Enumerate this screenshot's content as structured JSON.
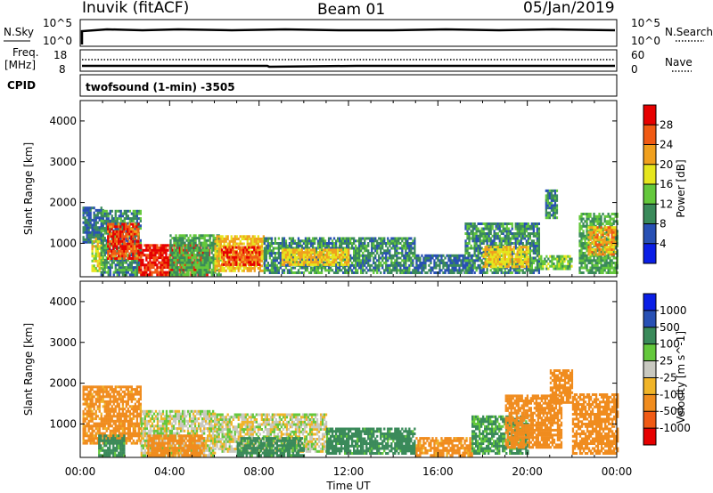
{
  "header": {
    "station": "Inuvik (fitACF)",
    "beam": "Beam 01",
    "date": "05/Jan/2019"
  },
  "top_panels": {
    "nsky_label": "N.Sky",
    "nsearch_label": "N.Search",
    "noise_ticks": [
      "10^5",
      "10^0"
    ],
    "freq_label_line1": "Freq.",
    "freq_label_line2": "[MHz]",
    "freq_ticks": [
      "18",
      "8"
    ],
    "nave_label": "Nave",
    "nave_ticks": [
      "60",
      "0"
    ],
    "cpid_label": "CPID",
    "cpid_text": "twofsound (1-min) -3505"
  },
  "colors": {
    "power": [
      "#0a1ee6",
      "#2850b4",
      "#3a8a5a",
      "#64c83c",
      "#e6e61e",
      "#f0a01e",
      "#f05a14",
      "#e60000"
    ],
    "velocity": [
      "#e60000",
      "#f05a14",
      "#f08c1e",
      "#f0b428",
      "#c8c8c0",
      "#64c83c",
      "#3a8a5a",
      "#2850b4",
      "#0a1ee6"
    ]
  },
  "chart_data": [
    {
      "type": "heatmap",
      "title": "Power",
      "ylabel": "Slant Range [km]",
      "xlabel": "Time UT",
      "xticks": [
        "00:00",
        "04:00",
        "08:00",
        "12:00",
        "16:00",
        "20:00",
        "00:00"
      ],
      "yticks": [
        "1000",
        "2000",
        "3000",
        "4000"
      ],
      "ylim": [
        180,
        4500
      ],
      "xlim": [
        0,
        24
      ],
      "colorbar_label": "Power [dB]",
      "colorbar_ticks": [
        "4",
        "8",
        "12",
        "16",
        "20",
        "24",
        "28"
      ],
      "regions": [
        {
          "t0": 0.1,
          "t1": 1.0,
          "r0": 1000,
          "r1": 1900,
          "v": 8
        },
        {
          "t0": 0.5,
          "t1": 1.0,
          "r0": 300,
          "r1": 1100,
          "v": 18
        },
        {
          "t0": 0.9,
          "t1": 2.7,
          "r0": 200,
          "r1": 1800,
          "v": 10
        },
        {
          "t0": 1.2,
          "t1": 2.6,
          "r0": 600,
          "r1": 1500,
          "v": 27
        },
        {
          "t0": 2.6,
          "t1": 5.8,
          "r0": 200,
          "r1": 950,
          "v": 29
        },
        {
          "t0": 4.0,
          "t1": 6.3,
          "r0": 200,
          "r1": 1200,
          "v": 12
        },
        {
          "t0": 6.0,
          "t1": 8.2,
          "r0": 300,
          "r1": 1200,
          "v": 20
        },
        {
          "t0": 6.3,
          "t1": 8.0,
          "r0": 450,
          "r1": 900,
          "v": 27
        },
        {
          "t0": 8.2,
          "t1": 15.0,
          "r0": 250,
          "r1": 1100,
          "v": 10
        },
        {
          "t0": 9.0,
          "t1": 12.0,
          "r0": 450,
          "r1": 850,
          "v": 20
        },
        {
          "t0": 15.0,
          "t1": 17.5,
          "r0": 250,
          "r1": 700,
          "v": 8
        },
        {
          "t0": 17.2,
          "t1": 20.5,
          "r0": 250,
          "r1": 1500,
          "v": 10
        },
        {
          "t0": 18.0,
          "t1": 20.0,
          "r0": 400,
          "r1": 900,
          "v": 20
        },
        {
          "t0": 20.5,
          "t1": 22.0,
          "r0": 350,
          "r1": 700,
          "v": 14
        },
        {
          "t0": 20.8,
          "t1": 21.3,
          "r0": 1600,
          "r1": 2300,
          "v": 10
        },
        {
          "t0": 22.3,
          "t1": 24.0,
          "r0": 250,
          "r1": 1750,
          "v": 12
        },
        {
          "t0": 22.7,
          "t1": 23.9,
          "r0": 700,
          "r1": 1400,
          "v": 22
        }
      ]
    },
    {
      "type": "heatmap",
      "title": "Velocity",
      "ylabel": "Slant Range [km]",
      "xlabel": "Time UT",
      "xticks": [
        "00:00",
        "04:00",
        "08:00",
        "12:00",
        "16:00",
        "20:00",
        "00:00"
      ],
      "yticks": [
        "1000",
        "2000",
        "3000",
        "4000"
      ],
      "ylim": [
        180,
        4500
      ],
      "xlim": [
        0,
        24
      ],
      "colorbar_label": "Velocity [m s^-1]",
      "colorbar_ticks": [
        "1000",
        "500",
        "100",
        "25",
        "-25",
        "-100",
        "-500",
        "-1000"
      ],
      "regions": [
        {
          "t0": 0.1,
          "t1": 2.7,
          "r0": 500,
          "r1": 1900,
          "v": -150
        },
        {
          "t0": 0.8,
          "t1": 2.0,
          "r0": 200,
          "r1": 700,
          "v": 150
        },
        {
          "t0": 2.7,
          "t1": 6.0,
          "r0": 200,
          "r1": 1300,
          "v": 0
        },
        {
          "t0": 3.0,
          "t1": 5.5,
          "r0": 200,
          "r1": 700,
          "v": -300
        },
        {
          "t0": 6.0,
          "t1": 11.0,
          "r0": 300,
          "r1": 1250,
          "v": 0
        },
        {
          "t0": 7.0,
          "t1": 10.0,
          "r0": 200,
          "r1": 650,
          "v": 150
        },
        {
          "t0": 11.0,
          "t1": 15.0,
          "r0": 250,
          "r1": 900,
          "v": 150
        },
        {
          "t0": 15.0,
          "t1": 17.5,
          "r0": 200,
          "r1": 650,
          "v": -150
        },
        {
          "t0": 17.5,
          "t1": 20.0,
          "r0": 250,
          "r1": 1200,
          "v": 120
        },
        {
          "t0": 19.0,
          "t1": 21.5,
          "r0": 400,
          "r1": 1700,
          "v": -200
        },
        {
          "t0": 21.0,
          "t1": 22.0,
          "r0": 1500,
          "r1": 2300,
          "v": -400
        },
        {
          "t0": 22.0,
          "t1": 24.0,
          "r0": 250,
          "r1": 1700,
          "v": -250
        }
      ]
    }
  ]
}
